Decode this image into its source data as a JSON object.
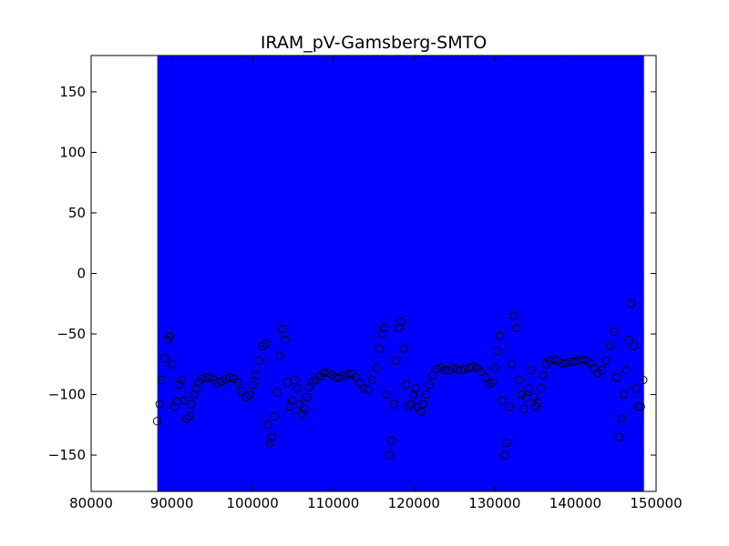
{
  "chart_data": {
    "type": "scatter",
    "title": "IRAM_pV-Gamsberg-SMTO",
    "xlabel": "",
    "ylabel": "",
    "xlim": [
      80000,
      150000
    ],
    "ylim": [
      -180,
      180
    ],
    "x_ticks": [
      80000,
      90000,
      100000,
      110000,
      120000,
      130000,
      140000,
      150000
    ],
    "y_ticks": [
      -150,
      -100,
      -50,
      0,
      50,
      100,
      150
    ],
    "x_tick_labels": [
      "80000",
      "90000",
      "100000",
      "110000",
      "120000",
      "130000",
      "140000",
      "150000"
    ],
    "y_tick_labels": [
      "−150",
      "−100",
      "−50",
      "0",
      "50",
      "100",
      "150"
    ],
    "grid": false,
    "legend": "none",
    "colors": {
      "band": "#0000ff",
      "marker_edge": "#000000",
      "axes": "#000000"
    },
    "band": {
      "x_start": 88200,
      "x_end": 148500,
      "y_start": -180,
      "y_end": 180
    },
    "series": [
      {
        "marker": "open-circle",
        "x": [
          88200,
          88500,
          88800,
          89100,
          89400,
          89700,
          90000,
          90300,
          90600,
          90900,
          91200,
          91500,
          91800,
          92100,
          92400,
          92700,
          93000,
          93300,
          93700,
          94200,
          94700,
          95200,
          95700,
          96200,
          96700,
          97200,
          97700,
          98200,
          98700,
          99200,
          99600,
          100000,
          100400,
          100800,
          101200,
          101600,
          101900,
          102200,
          102400,
          102700,
          103000,
          103300,
          103700,
          104000,
          104300,
          104600,
          104900,
          105200,
          105500,
          105800,
          106100,
          106400,
          106700,
          107000,
          107400,
          107800,
          108300,
          108800,
          109300,
          109800,
          110300,
          110800,
          111300,
          111800,
          112300,
          112800,
          113300,
          113800,
          114300,
          114800,
          115300,
          115700,
          116000,
          116300,
          116600,
          116900,
          117200,
          117500,
          117800,
          118100,
          118400,
          118700,
          119000,
          119300,
          119600,
          119900,
          120200,
          120500,
          120800,
          121100,
          121500,
          121900,
          122300,
          122800,
          123300,
          123800,
          124300,
          124800,
          125300,
          125800,
          126300,
          126800,
          127300,
          127800,
          128300,
          128800,
          129300,
          129700,
          130000,
          130300,
          130600,
          130900,
          131200,
          131500,
          131800,
          132100,
          132400,
          132700,
          133000,
          133300,
          133600,
          133900,
          134200,
          134500,
          134800,
          135100,
          135400,
          135700,
          136000,
          136400,
          136800,
          137300,
          137800,
          138300,
          138800,
          139300,
          139800,
          140300,
          140800,
          141300,
          141800,
          142300,
          142800,
          143300,
          143800,
          144300,
          144800,
          145100,
          145400,
          145700,
          146000,
          146300,
          146600,
          146900,
          147200,
          147500,
          147800,
          148100,
          148400
        ],
        "y": [
          -122,
          -108,
          -88,
          -70,
          -55,
          -52,
          -75,
          -110,
          -106,
          -92,
          -88,
          -105,
          -120,
          -118,
          -108,
          -100,
          -95,
          -90,
          -87,
          -86,
          -86,
          -88,
          -90,
          -89,
          -87,
          -86,
          -87,
          -90,
          -97,
          -102,
          -100,
          -92,
          -84,
          -72,
          -60,
          -58,
          -125,
          -140,
          -135,
          -118,
          -98,
          -68,
          -46,
          -55,
          -90,
          -110,
          -105,
          -88,
          -95,
          -108,
          -116,
          -112,
          -102,
          -94,
          -90,
          -88,
          -85,
          -82,
          -82,
          -84,
          -86,
          -86,
          -84,
          -83,
          -83,
          -86,
          -90,
          -95,
          -96,
          -88,
          -78,
          -62,
          -50,
          -45,
          -100,
          -150,
          -138,
          -108,
          -72,
          -45,
          -40,
          -62,
          -92,
          -110,
          -108,
          -100,
          -95,
          -110,
          -114,
          -108,
          -100,
          -92,
          -84,
          -79,
          -78,
          -80,
          -80,
          -78,
          -79,
          -80,
          -79,
          -78,
          -77,
          -78,
          -81,
          -86,
          -91,
          -90,
          -78,
          -64,
          -52,
          -105,
          -150,
          -140,
          -110,
          -75,
          -35,
          -45,
          -88,
          -100,
          -112,
          -103,
          -95,
          -80,
          -102,
          -110,
          -107,
          -95,
          -84,
          -75,
          -72,
          -71,
          -72,
          -74,
          -74,
          -73,
          -73,
          -72,
          -71,
          -72,
          -74,
          -78,
          -82,
          -80,
          -72,
          -60,
          -48,
          -86,
          -135,
          -120,
          -100,
          -80,
          -55,
          -25,
          -60,
          -95,
          -110,
          -110,
          -88
        ]
      }
    ]
  }
}
